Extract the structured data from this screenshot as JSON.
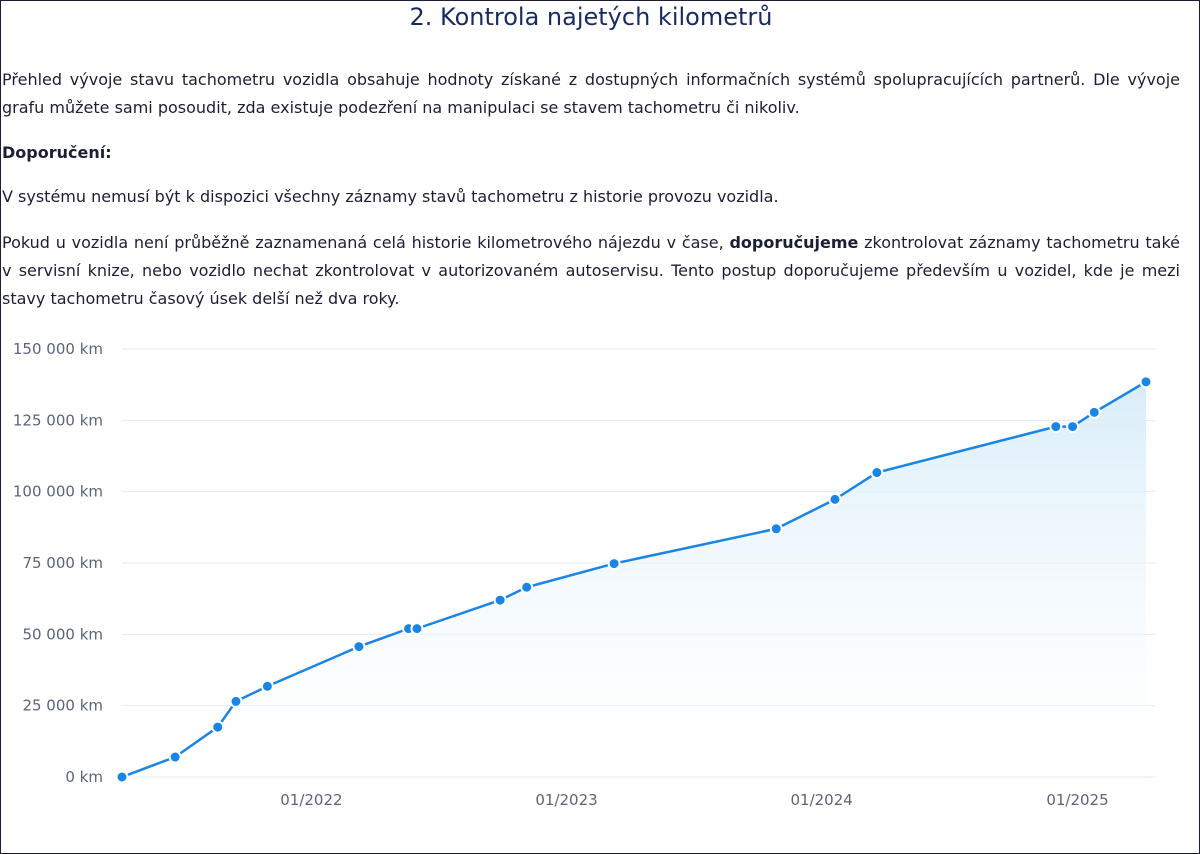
{
  "header": {
    "title": "2. Kontrola najetých kilometrů"
  },
  "content": {
    "intro": "Přehled vývoje stavu tachometru vozidla obsahuje hodnoty získané z dostupných informačních systémů spolupracujících partnerů. Dle vývoje grafu můžete sami posoudit, zda existuje podezření na manipulaci se stavem tachometru či nikoliv.",
    "recommendation_heading": "Doporučení:",
    "note": "V systému nemusí být k dispozici všechny záznamy stavů tachometru z historie provozu vozidla.",
    "advice_part1": "Pokud u vozidla není průběžně zaznamenaná celá historie kilometrového nájezdu v čase, ",
    "advice_bold": "doporučujeme",
    "advice_part2": " zkontrolovat záznamy tachometru také v servisní knize, nebo vozidlo nechat zkontrolovat v autorizovaném autoservisu. Tento postup doporučujeme především u vozidel, kde je mezi stavy tachometru časový úsek delší než dva roky."
  },
  "colors": {
    "line": "#1a85e3",
    "point": "#1a85e3",
    "area_top": "#d6ecf9",
    "grid": "#e6e8ee",
    "axis_text": "#5c6478",
    "title": "#1a2b5e"
  },
  "chart_data": {
    "type": "area",
    "y_tick_labels": [
      "0 km",
      "25 000 km",
      "50 000 km",
      "75 000 km",
      "100 000 km",
      "125 000 km",
      "150 000 km"
    ],
    "y_ticks": [
      0,
      25000,
      50000,
      75000,
      100000,
      125000,
      150000
    ],
    "x_tick_labels": [
      "01/2022",
      "01/2023",
      "01/2024",
      "01/2025"
    ],
    "x_ticks": [
      "2022-01-01",
      "2023-01-01",
      "2024-01-01",
      "2025-01-01"
    ],
    "xlim": [
      "2021-04-05",
      "2025-04-09"
    ],
    "ylim": [
      0,
      150000
    ],
    "grid": true,
    "series": [
      {
        "x": [
          "2021-04-05",
          "2021-06-20",
          "2021-08-20",
          "2021-09-15",
          "2021-10-30",
          "2022-03-10",
          "2022-05-20",
          "2022-06-01",
          "2022-09-28",
          "2022-11-05",
          "2023-03-10",
          "2023-10-28",
          "2024-01-20",
          "2024-03-20",
          "2024-12-01",
          "2024-12-25",
          "2025-01-25",
          "2025-04-09"
        ],
        "y": [
          0,
          7000,
          17500,
          26500,
          31800,
          45700,
          52000,
          52000,
          62000,
          66500,
          74800,
          87000,
          97300,
          106700,
          122800,
          122800,
          127800,
          138500
        ]
      }
    ]
  }
}
